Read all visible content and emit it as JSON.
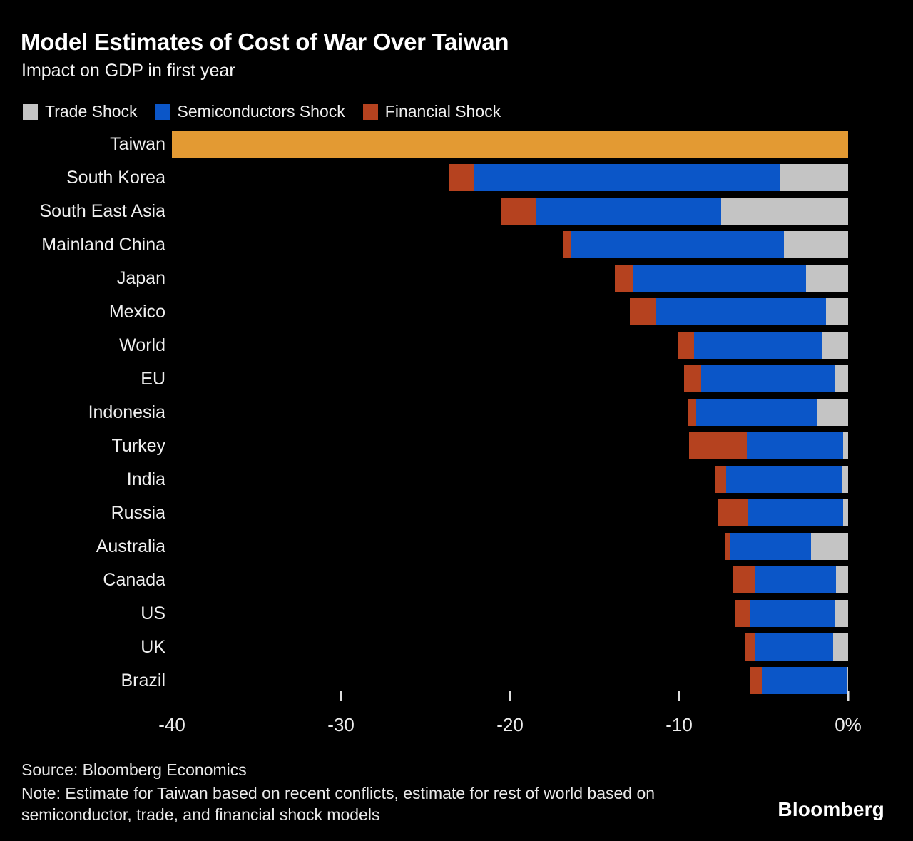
{
  "header": {
    "title": "Model Estimates of Cost of War Over Taiwan",
    "subtitle": "Impact on GDP in first year"
  },
  "footer": {
    "source": "Source: Bloomberg Economics",
    "note": "Note: Estimate for Taiwan based on recent conflicts, estimate for rest of world based on semiconductor, trade, and financial shock models",
    "brand": "Bloomberg"
  },
  "chart_data": {
    "type": "bar",
    "orientation": "horizontal",
    "stacked": true,
    "unit": "% of GDP",
    "xlim": [
      -40,
      0
    ],
    "grid": false,
    "legend_position": "top",
    "legend": [
      {
        "key": "trade",
        "name": "Trade Shock",
        "color": "#c4c4c4"
      },
      {
        "key": "semiconductors",
        "name": "Semiconductors Shock",
        "color": "#0b56c8"
      },
      {
        "key": "financial",
        "name": "Financial Shock",
        "color": "#b5421f"
      }
    ],
    "colors": {
      "trade": "#c4c4c4",
      "semiconductors": "#0b56c8",
      "financial": "#b5421f",
      "conflict_estimate": "#e39a33"
    },
    "ticks": [
      {
        "value": -40,
        "label": "-40",
        "mark": false
      },
      {
        "value": -30,
        "label": "-30",
        "mark": true
      },
      {
        "value": -20,
        "label": "-20",
        "mark": true
      },
      {
        "value": -10,
        "label": "-10",
        "mark": true
      },
      {
        "value": 0,
        "label": "0%",
        "mark": true
      }
    ],
    "rows": [
      {
        "label": "Taiwan",
        "single_value": -40.0
      },
      {
        "label": "South Korea",
        "financial": -1.5,
        "semiconductors": -18.1,
        "trade": -4.0
      },
      {
        "label": "South East Asia",
        "financial": -2.0,
        "semiconductors": -11.0,
        "trade": -7.5
      },
      {
        "label": "Mainland China",
        "financial": -0.5,
        "semiconductors": -12.6,
        "trade": -3.8
      },
      {
        "label": "Japan",
        "financial": -1.1,
        "semiconductors": -10.2,
        "trade": -2.5
      },
      {
        "label": "Mexico",
        "financial": -1.5,
        "semiconductors": -10.1,
        "trade": -1.3
      },
      {
        "label": "World",
        "financial": -1.0,
        "semiconductors": -7.6,
        "trade": -1.5
      },
      {
        "label": "EU",
        "financial": -1.0,
        "semiconductors": -7.9,
        "trade": -0.8
      },
      {
        "label": "Indonesia",
        "financial": -0.5,
        "semiconductors": -7.2,
        "trade": -1.8
      },
      {
        "label": "Turkey",
        "financial": -3.4,
        "semiconductors": -5.7,
        "trade": -0.3
      },
      {
        "label": "India",
        "financial": -0.7,
        "semiconductors": -6.8,
        "trade": -0.4
      },
      {
        "label": "Russia",
        "financial": -1.8,
        "semiconductors": -5.6,
        "trade": -0.3
      },
      {
        "label": "Australia",
        "financial": -0.3,
        "semiconductors": -4.8,
        "trade": -2.2
      },
      {
        "label": "Canada",
        "financial": -1.3,
        "semiconductors": -4.8,
        "trade": -0.7
      },
      {
        "label": "US",
        "financial": -0.9,
        "semiconductors": -5.0,
        "trade": -0.8
      },
      {
        "label": "UK",
        "financial": -0.6,
        "semiconductors": -4.6,
        "trade": -0.9
      },
      {
        "label": "Brazil",
        "financial": -0.7,
        "semiconductors": -5.0,
        "trade": -0.1
      }
    ]
  }
}
